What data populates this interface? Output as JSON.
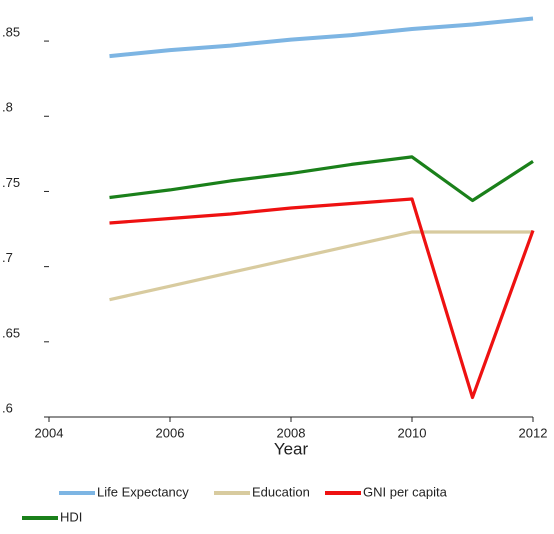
{
  "chart_data": {
    "type": "line",
    "x": [
      2005,
      2006,
      2007,
      2008,
      2009,
      2010,
      2011,
      2012
    ],
    "x_label": "Year",
    "series": [
      {
        "name": "Life Expectancy",
        "color": "#7db5e3",
        "values": [
          0.84,
          0.844,
          0.847,
          0.851,
          0.854,
          0.858,
          0.861,
          0.865
        ]
      },
      {
        "name": "Education",
        "color": "#d8cb9f",
        "values": [
          0.678,
          0.687,
          0.696,
          0.705,
          0.714,
          0.723,
          0.723,
          0.723
        ]
      },
      {
        "name": "GNI per capita",
        "color": "#ee1111",
        "values": [
          0.729,
          0.732,
          0.735,
          0.739,
          0.742,
          0.745,
          0.613,
          0.724
        ]
      },
      {
        "name": "HDI",
        "color": "#1a801a",
        "values": [
          0.746,
          0.751,
          0.757,
          0.762,
          0.768,
          0.773,
          0.744,
          0.77
        ]
      }
    ],
    "xlim": [
      2004,
      2012
    ],
    "xticks": [
      2004,
      2006,
      2008,
      2010,
      2012
    ],
    "ylim": [
      0.6,
      0.87
    ],
    "yticks": [
      {
        "value": 0.6,
        "label": ".6"
      },
      {
        "value": 0.65,
        "label": ".65"
      },
      {
        "value": 0.7,
        "label": ".7"
      },
      {
        "value": 0.75,
        "label": ".75"
      },
      {
        "value": 0.8,
        "label": ".8"
      },
      {
        "value": 0.85,
        "label": ".85"
      }
    ]
  }
}
